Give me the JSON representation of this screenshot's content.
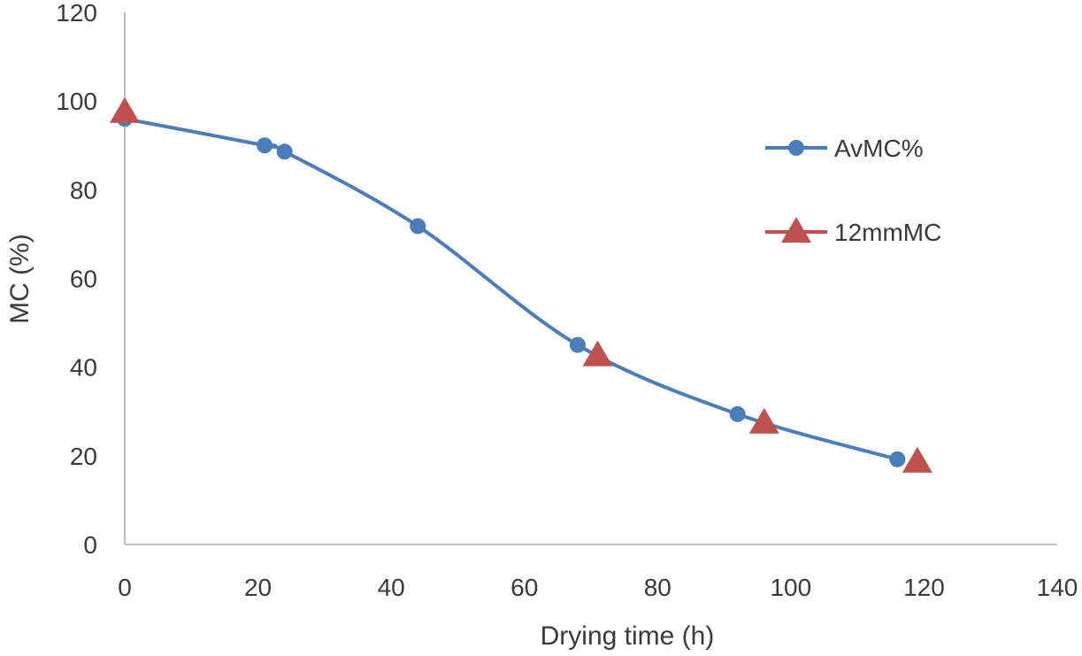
{
  "chart_data": {
    "type": "line",
    "title": "",
    "xlabel": "Drying time (h)",
    "ylabel": "MC (%)",
    "xlim": [
      0,
      140
    ],
    "ylim": [
      0,
      120
    ],
    "xticks": [
      0,
      20,
      40,
      60,
      80,
      100,
      120,
      140
    ],
    "yticks": [
      0,
      20,
      40,
      60,
      80,
      100,
      120
    ],
    "grid": false,
    "legend_position": "right",
    "series": [
      {
        "name": "AvMC%",
        "color": "#4a7ebb",
        "marker": "circle",
        "line": "smooth",
        "x": [
          0,
          21,
          24,
          44,
          68,
          92,
          116
        ],
        "y": [
          96,
          90,
          88.6,
          71.8,
          45,
          29.4,
          19.2
        ]
      },
      {
        "name": "12mmMC",
        "color": "#c0504d",
        "marker": "triangle",
        "line": "none",
        "x": [
          0,
          71,
          96,
          119
        ],
        "y": [
          97.5,
          42.6,
          27.4,
          18.6
        ]
      }
    ]
  }
}
